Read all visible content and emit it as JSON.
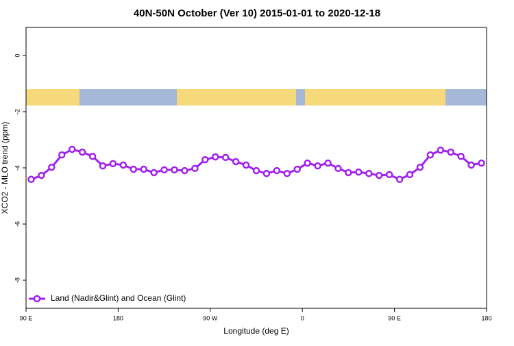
{
  "chart_data": {
    "type": "line",
    "title": "40N-50N October (Ver 10)   2015-01-01 to 2020-12-18",
    "x_label": "Longitude (deg E)",
    "y_label": "XCO2 - MLO trend (ppm)",
    "x": [
      95,
      105,
      115,
      125,
      135,
      145,
      155,
      165,
      175,
      185,
      195,
      205,
      215,
      225,
      235,
      245,
      255,
      265,
      275,
      285,
      295,
      305,
      315,
      325,
      335,
      345,
      355,
      365,
      375,
      385,
      395,
      405,
      415,
      425,
      435,
      445,
      455,
      465,
      475,
      485,
      495,
      505,
      515,
      525,
      535
    ],
    "series": [
      {
        "name": "Land (Nadir&Glint) and Ocean (Glint)",
        "color": "#a020f0",
        "values": [
          -4.41,
          -4.27,
          -3.98,
          -3.54,
          -3.34,
          -3.44,
          -3.59,
          -3.93,
          -3.85,
          -3.9,
          -4.05,
          -4.05,
          -4.17,
          -4.07,
          -4.07,
          -4.1,
          -4.02,
          -3.71,
          -3.61,
          -3.63,
          -3.78,
          -3.9,
          -4.1,
          -4.2,
          -4.1,
          -4.2,
          -4.05,
          -3.83,
          -3.93,
          -3.83,
          -4.02,
          -4.17,
          -4.15,
          -4.2,
          -4.27,
          -4.24,
          -4.41,
          -4.24,
          -3.98,
          -3.54,
          -3.37,
          -3.44,
          -3.59,
          -3.9,
          -3.83
        ]
      }
    ],
    "xlim": [
      90,
      540
    ],
    "xticks": [
      {
        "value": 90,
        "label": "90 E"
      },
      180,
      {
        "value": 270,
        "label": "90 W"
      },
      {
        "value": 360,
        "label": "0"
      },
      {
        "value": 450,
        "label": "90 E"
      },
      {
        "value": 540,
        "label": "180"
      }
    ],
    "ylim": [
      -9,
      1
    ],
    "yticks": [
      0,
      -2,
      -4,
      -6,
      -8
    ],
    "legend": "bottom-left"
  }
}
